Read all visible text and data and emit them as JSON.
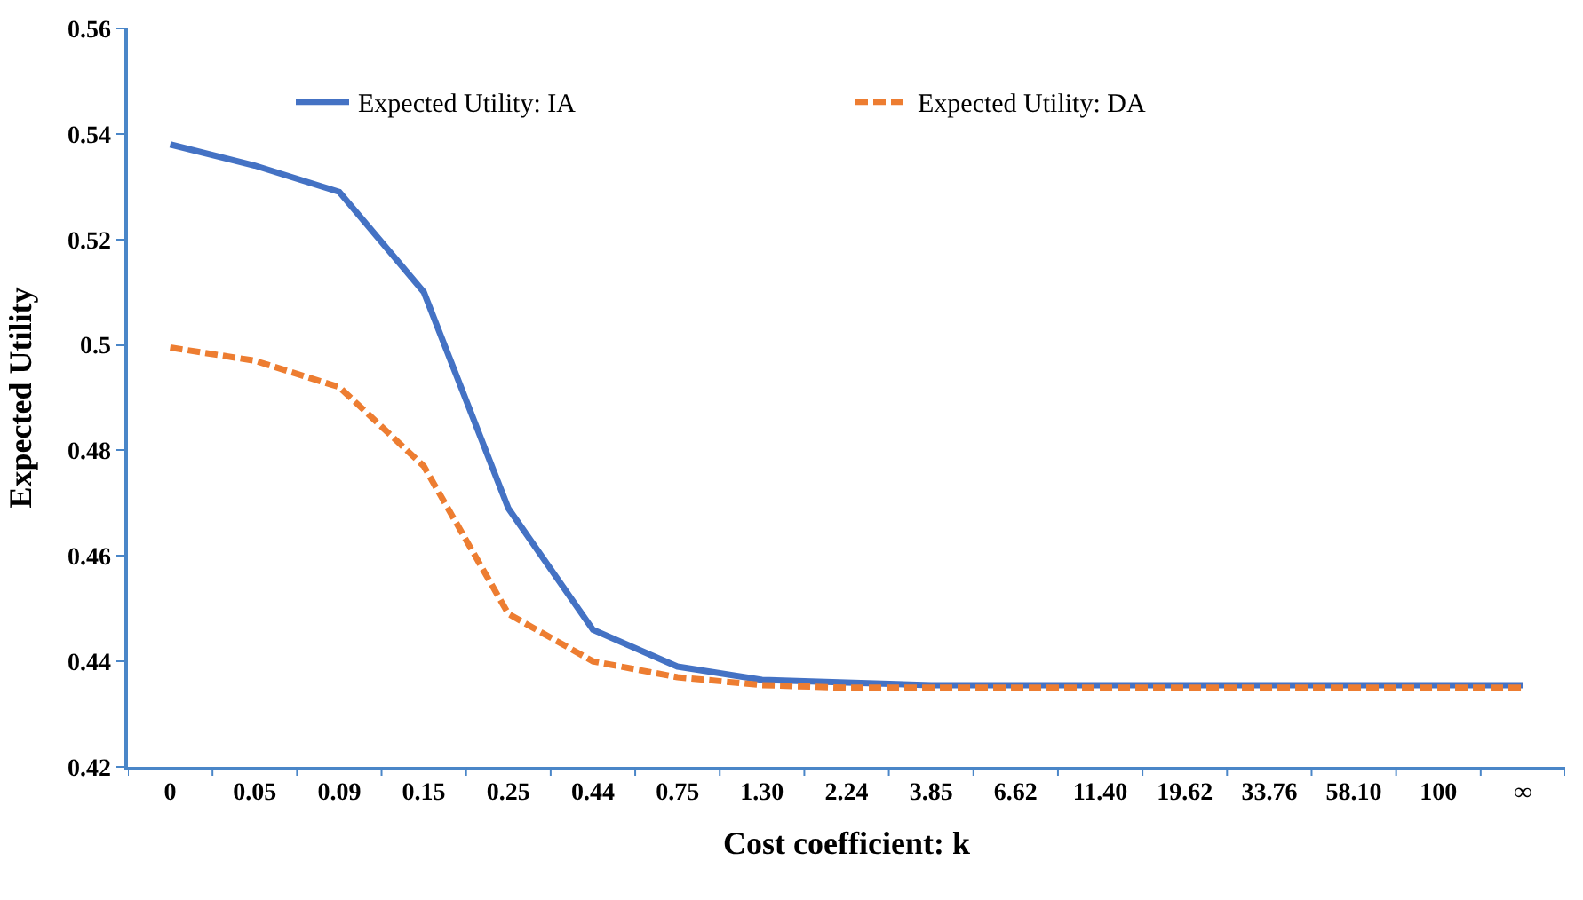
{
  "chart_data": {
    "type": "line",
    "xlabel": "Cost coefficient: k",
    "ylabel": "Expected Utility",
    "categories": [
      "0",
      "0.05",
      "0.09",
      "0.15",
      "0.25",
      "0.44",
      "0.75",
      "1.30",
      "2.24",
      "3.85",
      "6.62",
      "11.40",
      "19.62",
      "33.76",
      "58.10",
      "100",
      "∞"
    ],
    "series": [
      {
        "name": "Expected Utility: IA",
        "color": "#4472c4",
        "line_style": "solid",
        "values": [
          0.538,
          0.534,
          0.529,
          0.51,
          0.469,
          0.446,
          0.439,
          0.4365,
          0.436,
          0.4355,
          0.4355,
          0.4355,
          0.4355,
          0.4355,
          0.4355,
          0.4355,
          0.4355
        ]
      },
      {
        "name": "Expected Utility: DA",
        "color": "#ed7d31",
        "line_style": "dashed",
        "values": [
          0.4995,
          0.497,
          0.492,
          0.477,
          0.449,
          0.44,
          0.437,
          0.4355,
          0.435,
          0.435,
          0.435,
          0.435,
          0.435,
          0.435,
          0.435,
          0.435,
          0.435
        ]
      }
    ],
    "ylim": [
      0.42,
      0.56
    ],
    "yticks": [
      0.42,
      0.44,
      0.46,
      0.48,
      {
        "value": 0.5,
        "label": "0.5"
      },
      0.52,
      0.54,
      0.56
    ],
    "legend": "top",
    "marker": "none"
  }
}
